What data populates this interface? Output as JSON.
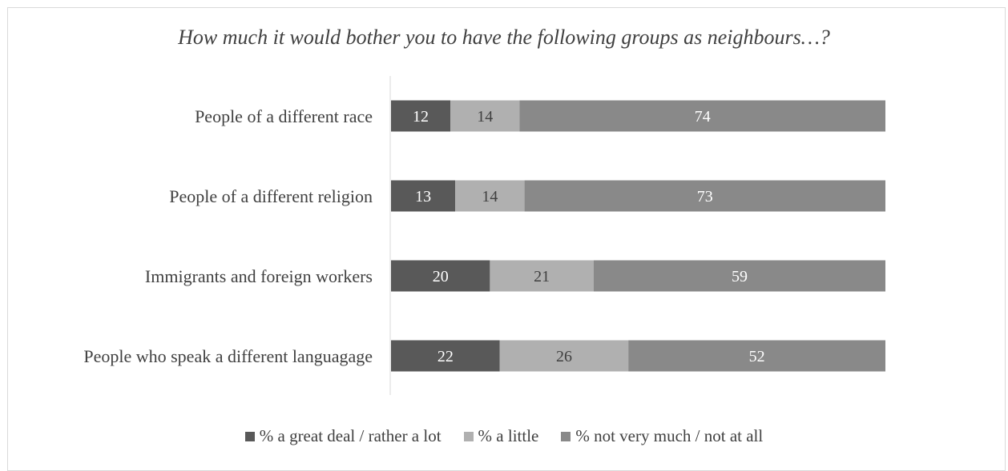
{
  "chart_data": {
    "type": "bar",
    "orientation": "horizontal",
    "stacked": true,
    "title": "How much it would bother you to have the following groups as neighbours…?",
    "categories": [
      "People of a different race",
      "People of a different religion",
      "Immigrants and foreign workers",
      "People who speak a different languagage"
    ],
    "series": [
      {
        "name": "% a great deal / rather a lot",
        "color": "#595959",
        "label_color": "#ffffff",
        "values": [
          12,
          13,
          20,
          22
        ]
      },
      {
        "name": "% a little",
        "color": "#b0b0b0",
        "label_color": "#404040",
        "values": [
          14,
          14,
          21,
          26
        ]
      },
      {
        "name": "% not very much / not at all",
        "color": "#898989",
        "label_color": "#ffffff",
        "values": [
          74,
          73,
          59,
          52
        ]
      }
    ],
    "xlim": [
      0,
      100
    ],
    "grid": false,
    "legend_position": "bottom"
  }
}
